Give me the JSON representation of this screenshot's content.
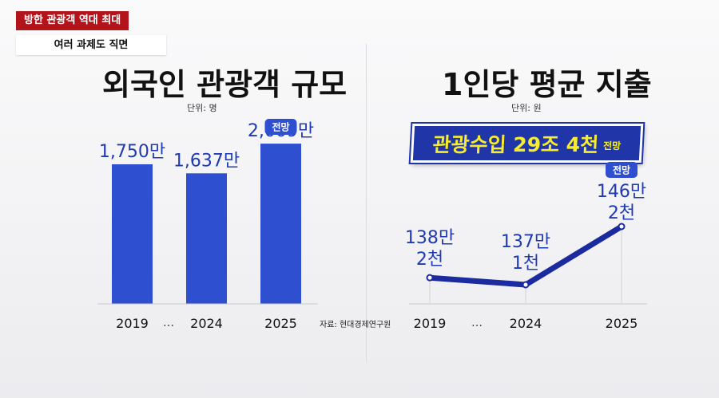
{
  "header": {
    "tag_red": "방한 관광객 역대 최대",
    "tag_white": "여러 과제도 직면"
  },
  "left_panel": {
    "title": "외국인 관광객 규모",
    "unit": "단위: 명",
    "source": "자료: 현대경제연구원"
  },
  "right_panel": {
    "title": "1인당 평균 지출",
    "unit": "단위: 원",
    "banner_main": "관광수입 29조 4천",
    "banner_sub": "전망"
  },
  "colors": {
    "bar": "#2f4fd1",
    "line": "#1b2a9e",
    "label": "#1f3ab5",
    "badge": "#2f4fd1"
  },
  "chart_data": [
    {
      "type": "bar",
      "title": "외국인 관광객 규모",
      "unit": "단위: 명",
      "categories": [
        "2019",
        "2024",
        "2025"
      ],
      "values": [
        1750,
        1637,
        2009
      ],
      "value_labels": [
        "1,750만",
        "1,637만",
        "2,009만"
      ],
      "ellipsis": "…",
      "forecast_badge": "전망",
      "forecast_index": 2,
      "ylim": [
        0,
        2100
      ]
    },
    {
      "type": "line",
      "title": "1인당 평균 지출",
      "unit": "단위: 원",
      "categories": [
        "2019",
        "2024",
        "2025"
      ],
      "values": [
        1382000,
        1371000,
        1462000
      ],
      "value_labels": [
        [
          "138만",
          "2천"
        ],
        [
          "137만",
          "1천"
        ],
        [
          "146만",
          "2천"
        ]
      ],
      "ellipsis": "…",
      "forecast_badge": "전망",
      "forecast_index": 2
    }
  ]
}
